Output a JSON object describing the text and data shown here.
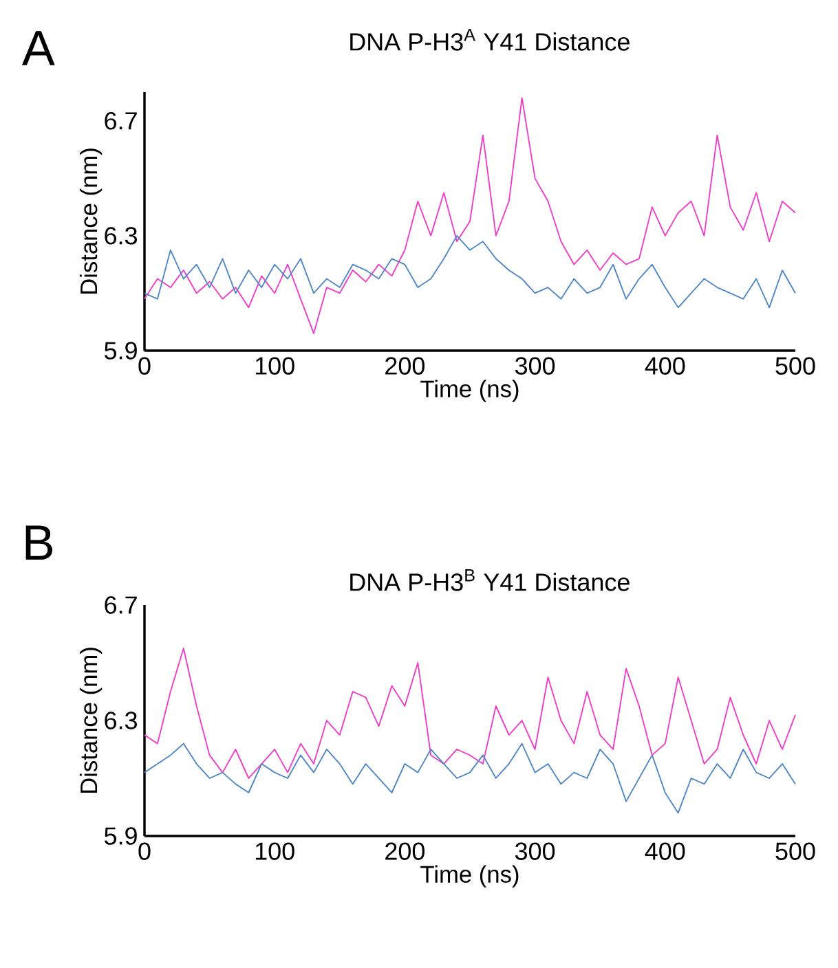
{
  "chart_data": [
    {
      "type": "line",
      "title": "DNA P-H3$^{A}$ Y41 Distance",
      "xlabel": "Time (ns)",
      "ylabel": "Distance (nm)",
      "annotations": [
        "A"
      ],
      "marker": "none",
      "line_style": "solid",
      "x": [
        0,
        10,
        20,
        30,
        40,
        50,
        60,
        70,
        80,
        90,
        100,
        110,
        120,
        130,
        140,
        150,
        160,
        170,
        180,
        190,
        200,
        210,
        220,
        230,
        240,
        250,
        260,
        270,
        280,
        290,
        300,
        310,
        320,
        330,
        340,
        350,
        360,
        370,
        380,
        390,
        400,
        410,
        420,
        430,
        440,
        450,
        460,
        470,
        480,
        490,
        500
      ],
      "xlim": [
        0,
        500
      ],
      "xticks": [
        0,
        100,
        200,
        300,
        400,
        500
      ],
      "ylim": [
        5.9,
        6.8
      ],
      "yticks": [
        5.9,
        6.3,
        6.7
      ],
      "series": [
        {
          "color": "#f03cc8",
          "values": [
            6.08,
            6.15,
            6.12,
            6.18,
            6.1,
            6.14,
            6.08,
            6.12,
            6.05,
            6.16,
            6.1,
            6.2,
            6.08,
            5.96,
            6.12,
            6.1,
            6.18,
            6.14,
            6.2,
            6.16,
            6.25,
            6.42,
            6.3,
            6.45,
            6.28,
            6.35,
            6.65,
            6.3,
            6.42,
            6.78,
            6.5,
            6.42,
            6.28,
            6.2,
            6.25,
            6.18,
            6.24,
            6.2,
            6.22,
            6.4,
            6.3,
            6.38,
            6.42,
            6.3,
            6.65,
            6.4,
            6.32,
            6.45,
            6.28,
            6.42,
            6.38
          ]
        },
        {
          "color": "#4f86c6",
          "values": [
            6.1,
            6.08,
            6.25,
            6.15,
            6.2,
            6.12,
            6.22,
            6.1,
            6.18,
            6.12,
            6.2,
            6.15,
            6.22,
            6.1,
            6.15,
            6.12,
            6.2,
            6.18,
            6.15,
            6.22,
            6.2,
            6.12,
            6.15,
            6.22,
            6.3,
            6.25,
            6.28,
            6.22,
            6.18,
            6.15,
            6.1,
            6.12,
            6.08,
            6.15,
            6.1,
            6.12,
            6.2,
            6.08,
            6.15,
            6.2,
            6.12,
            6.05,
            6.1,
            6.15,
            6.12,
            6.1,
            6.08,
            6.15,
            6.05,
            6.18,
            6.1
          ]
        }
      ]
    },
    {
      "type": "line",
      "title": "DNA P-H3$^{B}$ Y41  Distance",
      "xlabel": "Time (ns)",
      "ylabel": "Distance (nm)",
      "annotations": [
        "B"
      ],
      "marker": "none",
      "line_style": "solid",
      "x": [
        0,
        10,
        20,
        30,
        40,
        50,
        60,
        70,
        80,
        90,
        100,
        110,
        120,
        130,
        140,
        150,
        160,
        170,
        180,
        190,
        200,
        210,
        220,
        230,
        240,
        250,
        260,
        270,
        280,
        290,
        300,
        310,
        320,
        330,
        340,
        350,
        360,
        370,
        380,
        390,
        400,
        410,
        420,
        430,
        440,
        450,
        460,
        470,
        480,
        490,
        500
      ],
      "xlim": [
        0,
        500
      ],
      "xticks": [
        0,
        100,
        200,
        300,
        400,
        500
      ],
      "ylim": [
        5.9,
        6.7
      ],
      "yticks": [
        5.9,
        6.3,
        6.7
      ],
      "series": [
        {
          "color": "#f03cc8",
          "values": [
            6.25,
            6.22,
            6.4,
            6.55,
            6.35,
            6.18,
            6.12,
            6.2,
            6.1,
            6.15,
            6.2,
            6.12,
            6.22,
            6.15,
            6.3,
            6.25,
            6.4,
            6.38,
            6.28,
            6.42,
            6.35,
            6.5,
            6.18,
            6.15,
            6.2,
            6.18,
            6.15,
            6.35,
            6.25,
            6.3,
            6.2,
            6.45,
            6.3,
            6.22,
            6.4,
            6.25,
            6.2,
            6.48,
            6.35,
            6.18,
            6.22,
            6.45,
            6.3,
            6.15,
            6.2,
            6.38,
            6.25,
            6.15,
            6.3,
            6.2,
            6.32
          ]
        },
        {
          "color": "#4f86c6",
          "values": [
            6.12,
            6.15,
            6.18,
            6.22,
            6.15,
            6.1,
            6.12,
            6.08,
            6.05,
            6.15,
            6.12,
            6.1,
            6.18,
            6.12,
            6.2,
            6.15,
            6.08,
            6.15,
            6.1,
            6.05,
            6.15,
            6.12,
            6.2,
            6.15,
            6.1,
            6.12,
            6.18,
            6.1,
            6.15,
            6.22,
            6.12,
            6.15,
            6.08,
            6.12,
            6.1,
            6.2,
            6.15,
            6.02,
            6.1,
            6.18,
            6.05,
            5.98,
            6.1,
            6.08,
            6.15,
            6.1,
            6.2,
            6.12,
            6.1,
            6.15,
            6.08
          ]
        }
      ]
    }
  ]
}
